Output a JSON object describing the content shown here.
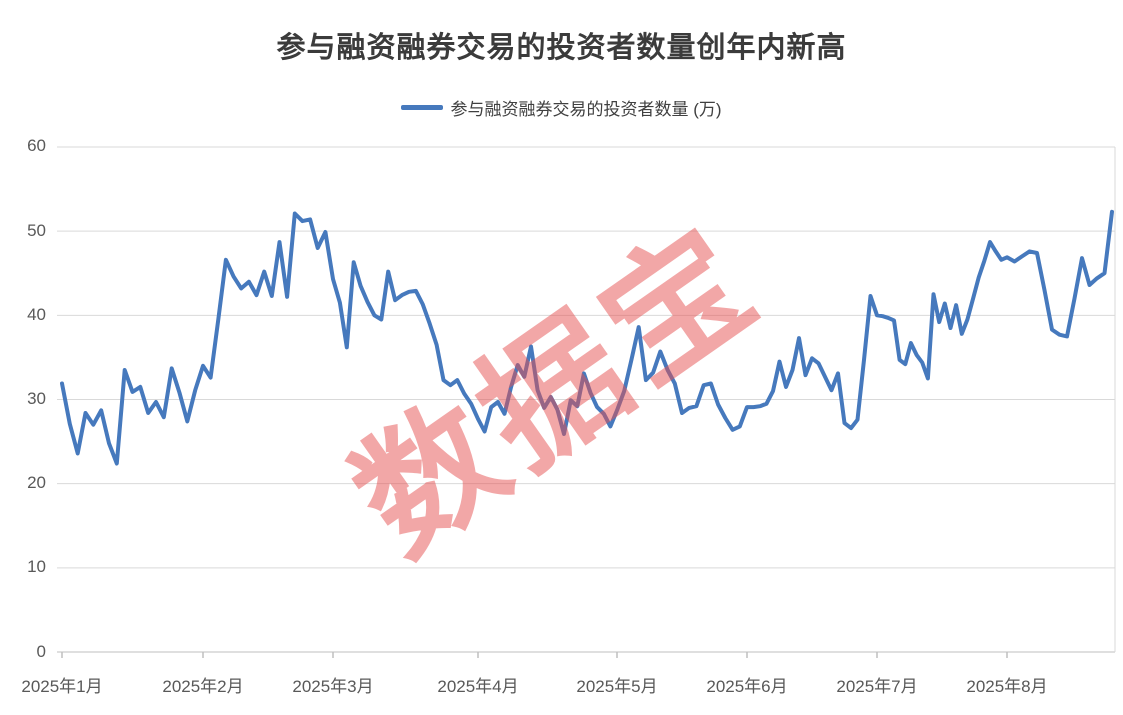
{
  "title": "参与融资融券交易的投资者数量创年内新高",
  "legend": {
    "label": "参与融资融券交易的投资者数量 (万)"
  },
  "watermark": "数据宝",
  "colors": {
    "line": "#4679BD",
    "watermark": "rgba(229,79,79,0.5)",
    "grid": "#D9D9D9",
    "axis": "#BFBFBF",
    "axis_text": "#595959",
    "title_text": "#3B3B3B"
  },
  "chart_data": {
    "type": "line",
    "title": "参与融资融券交易的投资者数量创年内新高",
    "series_name": "参与融资融券交易的投资者数量 (万)",
    "unit": "万",
    "ylim": [
      0,
      60
    ],
    "yticks": [
      0,
      10,
      20,
      30,
      40,
      50,
      60
    ],
    "grid": "horizontal",
    "legend_position": "top-center",
    "x_tick_labels": [
      "2025年1月",
      "2025年2月",
      "2025年3月",
      "2025年4月",
      "2025年5月",
      "2025年6月",
      "2025年7月",
      "2025年8月"
    ],
    "months": [
      {
        "label": "2025年1月",
        "values": [
          31.9,
          27.1,
          23.6,
          28.4,
          27.0,
          28.7,
          24.8,
          22.4,
          33.5,
          30.9,
          31.5,
          28.4,
          29.7,
          27.9,
          33.7,
          30.8,
          27.4,
          31.1
        ]
      },
      {
        "label": "2025年2月",
        "values": [
          34.0,
          32.6,
          39.5,
          46.6,
          44.6,
          43.2,
          44.0,
          42.4,
          45.2,
          42.3,
          48.7,
          42.2,
          52.1,
          51.2,
          51.4,
          48.0,
          49.9
        ]
      },
      {
        "label": "2025年3月",
        "values": [
          44.3,
          41.5,
          36.2,
          46.3,
          43.5,
          41.6,
          40.0,
          39.5,
          45.2,
          41.8,
          42.4,
          42.8,
          42.9,
          41.3,
          39.0,
          36.5,
          32.3,
          31.7,
          32.3,
          30.7,
          29.5
        ]
      },
      {
        "label": "2025年4月",
        "values": [
          27.7,
          26.2,
          29.1,
          29.7,
          28.3,
          31.5,
          34.1,
          32.7,
          36.3,
          31.1,
          29.0,
          30.3,
          28.8,
          25.9,
          29.9,
          29.2,
          33.1,
          30.8,
          29.1,
          28.3,
          26.8
        ]
      },
      {
        "label": "2025年5月",
        "values": [
          28.7,
          31.0,
          34.7,
          38.6,
          32.3,
          33.2,
          35.7,
          33.5,
          31.9,
          28.4,
          29.0,
          29.2,
          31.7,
          31.9,
          29.4,
          27.8,
          26.4,
          26.8
        ]
      },
      {
        "label": "2025年6月",
        "values": [
          29.1,
          29.1,
          29.2,
          29.5,
          31.0,
          34.5,
          31.5,
          33.5,
          37.3,
          32.9,
          34.9,
          34.3,
          32.7,
          31.1,
          33.1,
          27.2,
          26.6,
          27.6,
          34.7,
          42.3
        ]
      },
      {
        "label": "2025年7月",
        "values": [
          40.0,
          39.9,
          39.7,
          39.4,
          34.7,
          34.2,
          36.7,
          35.3,
          34.4,
          32.5,
          42.5,
          39.2,
          41.4,
          38.5,
          41.2,
          37.8,
          39.5,
          42.0,
          44.5,
          46.5,
          48.7,
          47.6,
          46.6
        ]
      },
      {
        "label": "2025年8月",
        "values": [
          46.9,
          46.4,
          47.0,
          47.6,
          47.4,
          43.0,
          38.3,
          37.7,
          37.5,
          42.0,
          46.8,
          43.6,
          44.4,
          45.0,
          52.3
        ]
      }
    ]
  }
}
